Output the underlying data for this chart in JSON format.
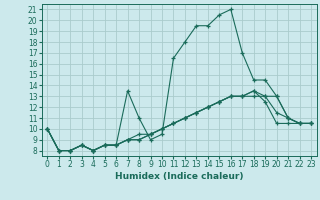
{
  "title": "",
  "xlabel": "Humidex (Indice chaleur)",
  "bg_color": "#cce9ec",
  "grid_color": "#aacccc",
  "line_color": "#1a6b5a",
  "xlim": [
    -0.5,
    23.5
  ],
  "ylim": [
    7.5,
    21.5
  ],
  "xticks": [
    0,
    1,
    2,
    3,
    4,
    5,
    6,
    7,
    8,
    9,
    10,
    11,
    12,
    13,
    14,
    15,
    16,
    17,
    18,
    19,
    20,
    21,
    22,
    23
  ],
  "yticks": [
    8,
    9,
    10,
    11,
    12,
    13,
    14,
    15,
    16,
    17,
    18,
    19,
    20,
    21
  ],
  "series1": {
    "x": [
      0,
      1,
      2,
      3,
      4,
      5,
      6,
      7,
      8,
      9,
      10,
      11,
      12,
      13,
      14,
      15,
      16,
      17,
      18,
      19,
      20,
      21,
      22,
      23
    ],
    "y": [
      10,
      8,
      8,
      8.5,
      8,
      8.5,
      8.5,
      13.5,
      11,
      9,
      9.5,
      16.5,
      18,
      19.5,
      19.5,
      20.5,
      21,
      17,
      14.5,
      14.5,
      13,
      11,
      10.5,
      10.5
    ]
  },
  "series2": {
    "x": [
      0,
      1,
      2,
      3,
      4,
      5,
      6,
      7,
      8,
      9,
      10,
      11,
      12,
      13,
      14,
      15,
      16,
      17,
      18,
      19,
      20,
      21,
      22,
      23
    ],
    "y": [
      10,
      8,
      8,
      8.5,
      8,
      8.5,
      8.5,
      9,
      9.5,
      9.5,
      10,
      10.5,
      11,
      11.5,
      12,
      12.5,
      13,
      13,
      13,
      13,
      13,
      11,
      10.5,
      10.5
    ]
  },
  "series3": {
    "x": [
      0,
      1,
      2,
      3,
      4,
      5,
      6,
      7,
      8,
      9,
      10,
      11,
      12,
      13,
      14,
      15,
      16,
      17,
      18,
      19,
      20,
      21,
      22,
      23
    ],
    "y": [
      10,
      8,
      8,
      8.5,
      8,
      8.5,
      8.5,
      9,
      9,
      9.5,
      10,
      10.5,
      11,
      11.5,
      12,
      12.5,
      13,
      13,
      13.5,
      13,
      11.5,
      11,
      10.5,
      10.5
    ]
  },
  "series4": {
    "x": [
      0,
      1,
      2,
      3,
      4,
      5,
      6,
      7,
      8,
      9,
      10,
      11,
      12,
      13,
      14,
      15,
      16,
      17,
      18,
      19,
      20,
      21,
      22,
      23
    ],
    "y": [
      10,
      8,
      8,
      8.5,
      8,
      8.5,
      8.5,
      9,
      9,
      9.5,
      10,
      10.5,
      11,
      11.5,
      12,
      12.5,
      13,
      13,
      13.5,
      12.5,
      10.5,
      10.5,
      10.5,
      10.5
    ]
  },
  "tick_fontsize": 5.5,
  "xlabel_fontsize": 6.5
}
